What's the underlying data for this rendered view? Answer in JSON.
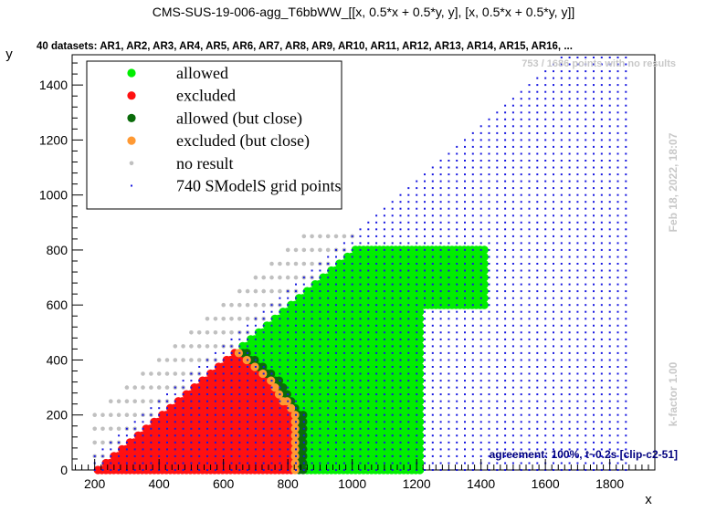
{
  "chart_data": {
    "type": "scatter",
    "title": "CMS-SUS-19-006-agg_T6bbWW_[[x, 0.5*x + 0.5*y, y], [x, 0.5*x + 0.5*y, y]]",
    "subtitle": "40 datasets: AR1, AR2, AR3, AR4, AR5, AR6, AR7, AR8, AR9, AR10, AR11, AR12, AR13, AR14, AR15, AR16,  ...",
    "xlabel": "x",
    "ylabel": "y",
    "xlim": [
      130,
      1940
    ],
    "ylim": [
      0,
      1510
    ],
    "xticks": [
      200,
      400,
      600,
      800,
      1000,
      1200,
      1400,
      1600,
      1800
    ],
    "yticks": [
      0,
      200,
      400,
      600,
      800,
      1000,
      1200,
      1400
    ],
    "no_result_note": "753 / 1686 points with no results",
    "timestamp": "Feb 18, 2022, 18:07",
    "kfactor": "k-factor 1.00",
    "agreement": "agreement: 100%, t~0.2s [clip-c2-51]",
    "legend_position": "top-left",
    "legend": [
      {
        "label": "allowed",
        "color": "#00ee00"
      },
      {
        "label": "excluded",
        "color": "#ff1010"
      },
      {
        "label": "allowed (but close)",
        "color": "#0a6b0a"
      },
      {
        "label": "excluded (but close)",
        "color": "#ff9933"
      },
      {
        "label": "no result",
        "color": "#c0c0c0"
      },
      {
        "label": "740 SModelS grid points",
        "color": "#1818e0"
      }
    ],
    "regions": {
      "excluded": {
        "x_range": [
          210,
          830
        ],
        "y_max_approx": 440,
        "color": "#ff1010"
      },
      "excluded_close": {
        "boundary": [
          [
            560,
            330
          ],
          [
            650,
            390
          ],
          [
            720,
            360
          ],
          [
            790,
            250
          ],
          [
            830,
            60
          ]
        ],
        "color": "#ff9933"
      },
      "allowed_close": {
        "boundary": [
          [
            650,
            400
          ],
          [
            720,
            390
          ],
          [
            790,
            300
          ],
          [
            840,
            220
          ],
          [
            860,
            150
          ]
        ],
        "color": "#0a6b0a"
      },
      "allowed": {
        "x_range": [
          650,
          1410
        ],
        "y_max": 800,
        "extra_strip": "x 830-1200 down to y 30",
        "color": "#00ee00"
      },
      "no_result": {
        "region": "upper-left band above y = x - 200",
        "color": "#c0c0c0"
      },
      "grid": {
        "x_range": [
          200,
          1860
        ],
        "y_max": 1500,
        "color": "#1818e0"
      }
    }
  }
}
